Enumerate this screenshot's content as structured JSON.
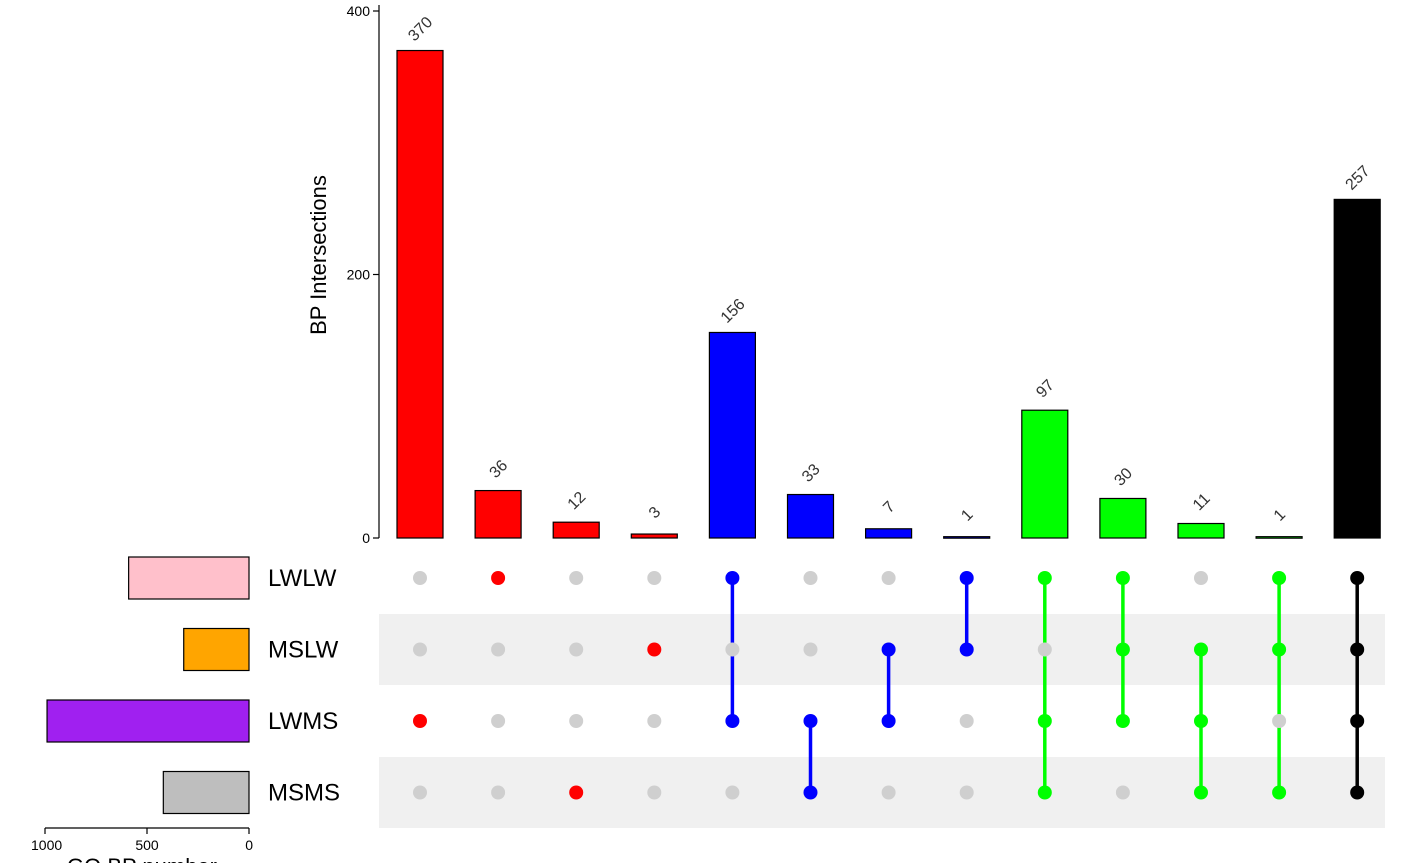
{
  "chart_data": {
    "type": "bar",
    "subtype": "upset",
    "ylabel": "BP Intersections",
    "ylim": [
      0,
      400
    ],
    "yticks": [
      0,
      200,
      400
    ],
    "sets": [
      "LWLW",
      "MSLW",
      "LWMS",
      "MSMS"
    ],
    "set_colors": {
      "LWLW": "#ffc0cb",
      "MSLW": "#ffa500",
      "LWMS": "#a020f0",
      "MSMS": "#bebebe"
    },
    "set_sizes_label": "GO BP number",
    "set_sizes_axis": {
      "reversed": true,
      "max": 1000,
      "ticks": [
        1000,
        500,
        0
      ],
      "tick_labels": [
        "1000",
        "500",
        "0"
      ]
    },
    "set_sizes": {
      "LWLW": 590,
      "MSLW": 320,
      "LWMS": 990,
      "MSMS": 420
    },
    "intersections": [
      {
        "value": 370,
        "label": "370",
        "sets": [
          "LWMS"
        ],
        "color": "#ff0000"
      },
      {
        "value": 36,
        "label": "36",
        "sets": [
          "LWLW"
        ],
        "color": "#ff0000"
      },
      {
        "value": 12,
        "label": "12",
        "sets": [
          "MSMS"
        ],
        "color": "#ff0000"
      },
      {
        "value": 3,
        "label": "3",
        "sets": [
          "MSLW"
        ],
        "color": "#ff0000"
      },
      {
        "value": 156,
        "label": "156",
        "sets": [
          "LWLW",
          "LWMS"
        ],
        "color": "#0000ff"
      },
      {
        "value": 33,
        "label": "33",
        "sets": [
          "LWMS",
          "MSMS"
        ],
        "color": "#0000ff"
      },
      {
        "value": 7,
        "label": "7",
        "sets": [
          "MSLW",
          "LWMS"
        ],
        "color": "#0000ff"
      },
      {
        "value": 1,
        "label": "1",
        "sets": [
          "LWLW",
          "MSLW"
        ],
        "color": "#0000ff"
      },
      {
        "value": 97,
        "label": "97",
        "sets": [
          "LWLW",
          "LWMS",
          "MSMS"
        ],
        "color": "#00ff00"
      },
      {
        "value": 30,
        "label": "30",
        "sets": [
          "LWLW",
          "MSLW",
          "LWMS"
        ],
        "color": "#00ff00"
      },
      {
        "value": 11,
        "label": "11",
        "sets": [
          "MSLW",
          "LWMS",
          "MSMS"
        ],
        "color": "#00ff00"
      },
      {
        "value": 1,
        "label": "1",
        "sets": [
          "LWLW",
          "MSLW",
          "MSMS"
        ],
        "color": "#00ff00"
      },
      {
        "value": 257,
        "label": "257",
        "sets": [
          "LWLW",
          "MSLW",
          "LWMS",
          "MSMS"
        ],
        "color": "#000000"
      }
    ],
    "inactive_dot_color": "#cfcfcf",
    "shaded_row_color": "#f0f0f0"
  }
}
